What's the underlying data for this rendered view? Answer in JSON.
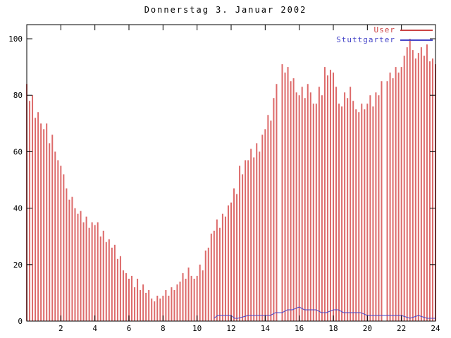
{
  "chart_data": {
    "type": "bar",
    "title": "Donnerstag 3. Januar 2002",
    "xlabel": "",
    "ylabel": "",
    "xlim": [
      0,
      24
    ],
    "ylim": [
      0,
      105
    ],
    "x_ticks": [
      2,
      4,
      6,
      8,
      10,
      12,
      14,
      16,
      18,
      20,
      22,
      24
    ],
    "y_ticks": [
      0,
      20,
      40,
      60,
      80,
      100
    ],
    "grid": false,
    "legend_position": "top-right",
    "axis_color": "#000000",
    "series": [
      {
        "name": "User",
        "type": "impulse",
        "color": "#dd6a6a",
        "label_color": "#cc4444",
        "x_start": 0,
        "x_step": 0.1666667,
        "values": [
          84,
          78,
          80,
          72,
          74,
          70,
          68,
          70,
          63,
          66,
          60,
          57,
          55,
          52,
          47,
          43,
          44,
          40,
          38,
          39,
          35,
          37,
          33,
          35,
          34,
          35,
          30,
          32,
          28,
          29,
          26,
          27,
          22,
          23,
          18,
          17,
          15,
          16,
          12,
          15,
          11,
          13,
          10,
          11,
          8,
          7,
          9,
          8,
          9,
          11,
          9,
          12,
          11,
          13,
          14,
          17,
          15,
          19,
          16,
          15,
          16,
          20,
          18,
          25,
          26,
          31,
          32,
          36,
          33,
          38,
          37,
          41,
          42,
          47,
          45,
          55,
          52,
          57,
          57,
          61,
          58,
          63,
          60,
          66,
          68,
          73,
          71,
          79,
          84,
          0,
          91,
          88,
          90,
          85,
          86,
          81,
          80,
          83,
          79,
          84,
          81,
          77,
          77,
          83,
          80,
          90,
          87,
          89,
          88,
          83,
          77,
          76,
          81,
          79,
          83,
          78,
          75,
          74,
          77,
          75,
          77,
          80,
          76,
          81,
          80,
          85,
          0,
          85,
          88,
          86,
          90,
          88,
          90,
          94,
          97,
          100,
          96,
          93,
          95,
          97,
          94,
          98,
          92,
          93,
          91
        ]
      },
      {
        "name": "Stuttgarter",
        "type": "line",
        "color": "#4646c8",
        "label_color": "#4646c8",
        "x": [
          11.0,
          11.2,
          11.4,
          11.6,
          11.8,
          12.0,
          12.2,
          12.4,
          13.0,
          13.3,
          13.6,
          14.0,
          14.3,
          14.6,
          15.0,
          15.3,
          15.6,
          16.0,
          16.3,
          16.6,
          17.0,
          17.3,
          17.6,
          18.0,
          18.3,
          18.6,
          19.0,
          19.3,
          19.6,
          20.0,
          20.5,
          21.0,
          21.5,
          22.0,
          22.5,
          23.0,
          23.5,
          24.0
        ],
        "values": [
          1,
          2,
          2,
          2,
          2,
          2,
          1,
          1,
          2,
          2,
          2,
          2,
          2,
          3,
          3,
          4,
          4,
          5,
          4,
          4,
          4,
          3,
          3,
          4,
          4,
          3,
          3,
          3,
          3,
          2,
          2,
          2,
          2,
          2,
          1,
          2,
          1,
          1
        ]
      }
    ]
  }
}
